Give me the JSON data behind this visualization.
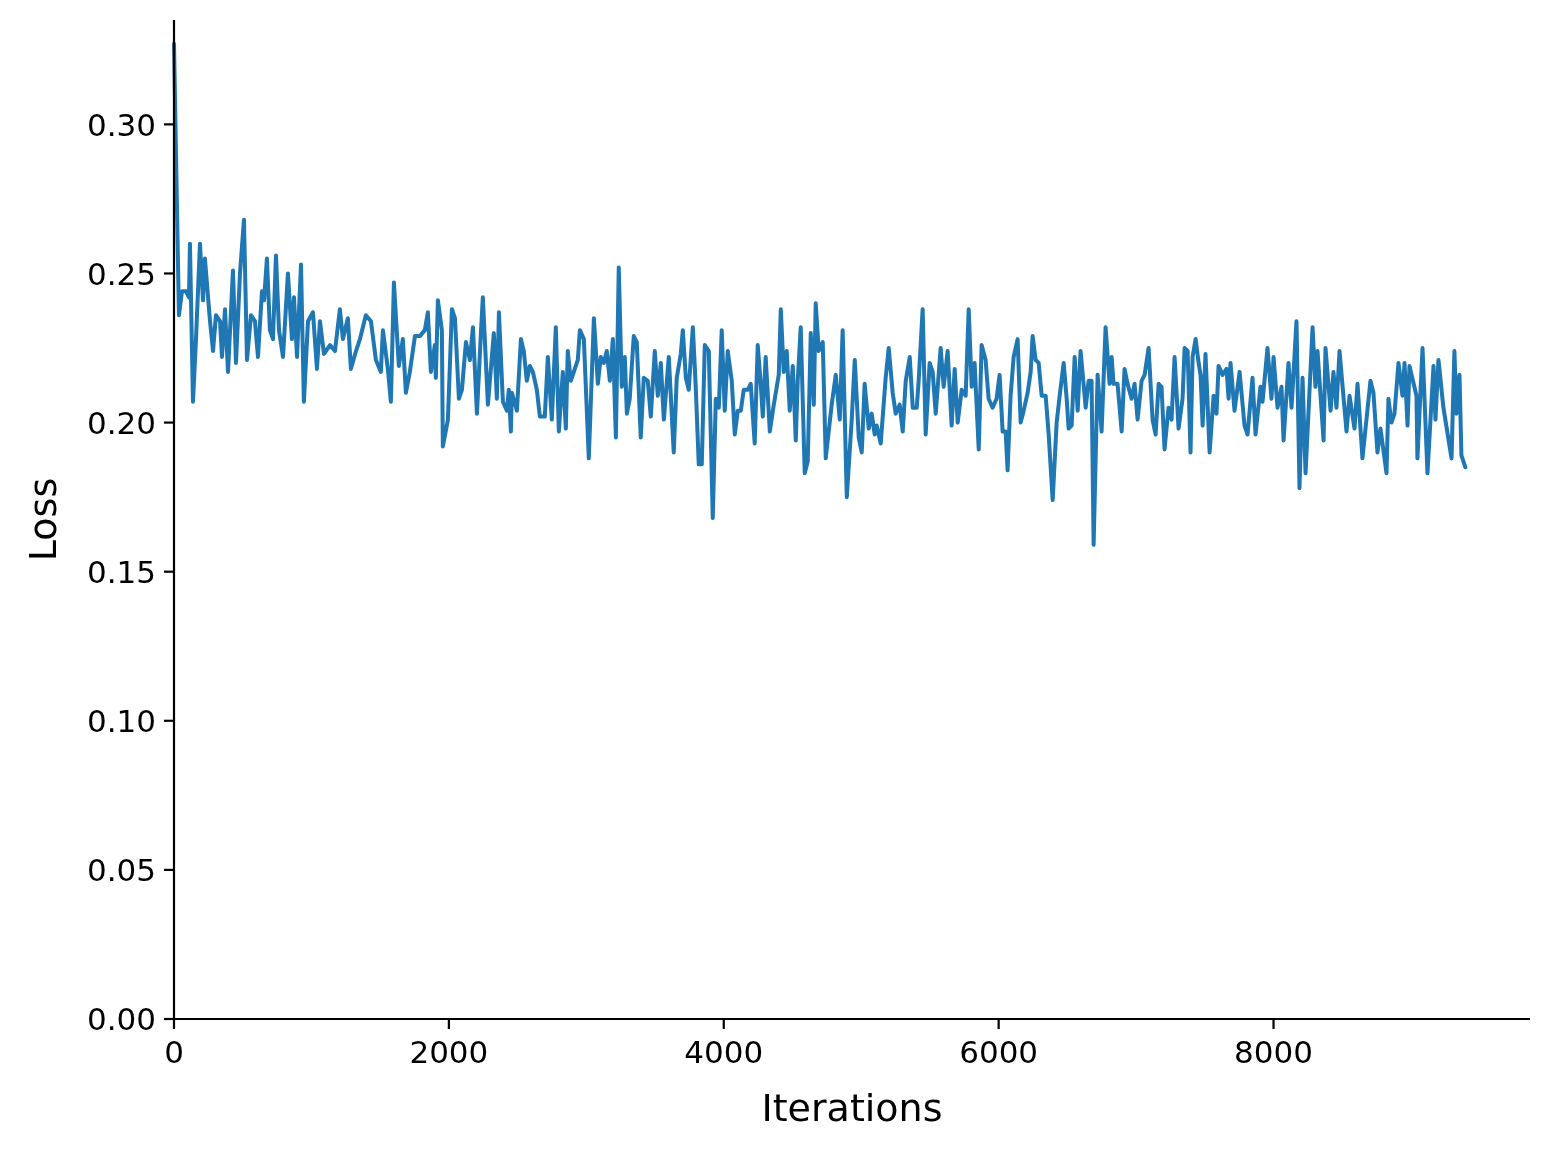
{
  "chart_data": {
    "type": "line",
    "xlabel": "Iterations",
    "ylabel": "Loss",
    "color": "#1f77b4",
    "xlim": [
      0,
      9866
    ],
    "ylim": [
      0,
      0.335
    ],
    "xticks": [
      0,
      2000,
      4000,
      6000,
      8000
    ],
    "yticks": [
      {
        "value": 0,
        "label": "0.00"
      },
      {
        "value": 0.05,
        "label": "0.05"
      },
      {
        "value": 0.1,
        "label": "0.10"
      },
      {
        "value": 0.15,
        "label": "0.15"
      },
      {
        "value": 0.2,
        "label": "0.20"
      },
      {
        "value": 0.25,
        "label": "0.25"
      },
      {
        "value": 0.3,
        "label": "0.30"
      }
    ],
    "x": [
      0,
      36,
      58,
      87,
      109,
      116,
      138,
      160,
      189,
      211,
      225,
      262,
      284,
      305,
      335,
      349,
      371,
      393,
      429,
      451,
      480,
      509,
      531,
      560,
      589,
      611,
      640,
      655,
      676,
      698,
      720,
      742,
      764,
      793,
      829,
      858,
      873,
      895,
      924,
      945,
      975,
      1011,
      1040,
      1062,
      1091,
      1135,
      1171,
      1207,
      1229,
      1265,
      1287,
      1324,
      1353,
      1396,
      1433,
      1469,
      1505,
      1520,
      1556,
      1578,
      1600,
      1636,
      1665,
      1687,
      1716,
      1753,
      1789,
      1825,
      1847,
      1869,
      1898,
      1905,
      1920,
      1949,
      1956,
      1993,
      2022,
      2044,
      2073,
      2095,
      2124,
      2153,
      2175,
      2204,
      2233,
      2247,
      2284,
      2327,
      2349,
      2364,
      2393,
      2422,
      2436,
      2451,
      2458,
      2495,
      2524,
      2545,
      2567,
      2589,
      2611,
      2640,
      2662,
      2698,
      2720,
      2749,
      2778,
      2800,
      2829,
      2851,
      2865,
      2887,
      2909,
      2938,
      2953,
      2982,
      3018,
      3055,
      3084,
      3105,
      3127,
      3149,
      3171,
      3193,
      3215,
      3236,
      3258,
      3280,
      3295,
      3316,
      3345,
      3367,
      3396,
      3418,
      3447,
      3469,
      3498,
      3520,
      3542,
      3564,
      3600,
      3636,
      3658,
      3687,
      3702,
      3724,
      3745,
      3775,
      3796,
      3818,
      3840,
      3862,
      3891,
      3920,
      3942,
      3964,
      3985,
      4007,
      4029,
      4058,
      4080,
      4102,
      4124,
      4145,
      4175,
      4196,
      4225,
      4247,
      4269,
      4284,
      4305,
      4335,
      4364,
      4400,
      4415,
      4436,
      4458,
      4480,
      4502,
      4524,
      4538,
      4560,
      4589,
      4611,
      4633,
      4655,
      4669,
      4691,
      4720,
      4742,
      4785,
      4815,
      4844,
      4865,
      4895,
      4931,
      4953,
      4982,
      5004,
      5025,
      5055,
      5076,
      5098,
      5113,
      5142,
      5178,
      5200,
      5229,
      5251,
      5280,
      5302,
      5324,
      5353,
      5375,
      5404,
      5418,
      5447,
      5469,
      5498,
      5520,
      5542,
      5578,
      5600,
      5629,
      5658,
      5680,
      5702,
      5731,
      5760,
      5782,
      5804,
      5825,
      5855,
      5876,
      5905,
      5927,
      5956,
      5985,
      6007,
      6029,
      6051,
      6065,
      6087,
      6109,
      6138,
      6160,
      6182,
      6211,
      6233,
      6247,
      6269,
      6291,
      6313,
      6342,
      6364,
      6393,
      6422,
      6444,
      6473,
      6495,
      6509,
      6531,
      6553,
      6575,
      6596,
      6618,
      6633,
      6655,
      6676,
      6691,
      6720,
      6749,
      6778,
      6807,
      6822,
      6836,
      6865,
      6895,
      6916,
      6938,
      6967,
      6989,
      7011,
      7040,
      7062,
      7091,
      7120,
      7142,
      7164,
      7185,
      7207,
      7236,
      7258,
      7280,
      7309,
      7338,
      7353,
      7375,
      7396,
      7411,
      7433,
      7455,
      7469,
      7484,
      7505,
      7535,
      7564,
      7585,
      7600,
      7629,
      7658,
      7673,
      7687,
      7716,
      7753,
      7789,
      7811,
      7847,
      7869,
      7905,
      7920,
      7956,
      7985,
      8000,
      8029,
      8058,
      8073,
      8109,
      8131,
      8167,
      8189,
      8211,
      8233,
      8284,
      8305,
      8320,
      8364,
      8378,
      8415,
      8436,
      8458,
      8480,
      8531,
      8553,
      8589,
      8611,
      8647,
      8705,
      8727,
      8756,
      8778,
      8822,
      8836,
      8858,
      8880,
      8909,
      8938,
      8953,
      8975,
      8989,
      9040,
      9047,
      9084,
      9120,
      9164,
      9178,
      9200,
      9236,
      9295,
      9316,
      9331,
      9353,
      9367,
      9396
    ],
    "values": [
      0.327,
      0.236,
      0.244,
      0.244,
      0.242,
      0.26,
      0.207,
      0.228,
      0.26,
      0.241,
      0.255,
      0.234,
      0.224,
      0.236,
      0.234,
      0.222,
      0.238,
      0.217,
      0.251,
      0.22,
      0.25,
      0.268,
      0.221,
      0.236,
      0.234,
      0.222,
      0.244,
      0.241,
      0.255,
      0.231,
      0.228,
      0.256,
      0.231,
      0.222,
      0.25,
      0.228,
      0.242,
      0.222,
      0.253,
      0.207,
      0.234,
      0.237,
      0.218,
      0.234,
      0.223,
      0.226,
      0.224,
      0.238,
      0.228,
      0.235,
      0.218,
      0.224,
      0.228,
      0.236,
      0.234,
      0.221,
      0.217,
      0.231,
      0.218,
      0.207,
      0.247,
      0.219,
      0.228,
      0.21,
      0.217,
      0.229,
      0.229,
      0.231,
      0.237,
      0.217,
      0.226,
      0.215,
      0.241,
      0.231,
      0.192,
      0.201,
      0.238,
      0.235,
      0.208,
      0.211,
      0.227,
      0.221,
      0.232,
      0.203,
      0.23,
      0.242,
      0.206,
      0.23,
      0.208,
      0.237,
      0.207,
      0.204,
      0.211,
      0.197,
      0.21,
      0.204,
      0.228,
      0.224,
      0.214,
      0.219,
      0.217,
      0.211,
      0.202,
      0.202,
      0.222,
      0.201,
      0.232,
      0.197,
      0.217,
      0.198,
      0.224,
      0.214,
      0.217,
      0.221,
      0.231,
      0.228,
      0.188,
      0.235,
      0.213,
      0.222,
      0.22,
      0.224,
      0.214,
      0.228,
      0.195,
      0.252,
      0.212,
      0.222,
      0.203,
      0.208,
      0.229,
      0.227,
      0.195,
      0.215,
      0.214,
      0.202,
      0.224,
      0.209,
      0.22,
      0.201,
      0.222,
      0.19,
      0.215,
      0.223,
      0.231,
      0.215,
      0.211,
      0.232,
      0.212,
      0.186,
      0.186,
      0.226,
      0.224,
      0.168,
      0.208,
      0.205,
      0.231,
      0.204,
      0.224,
      0.214,
      0.196,
      0.204,
      0.204,
      0.211,
      0.211,
      0.213,
      0.193,
      0.226,
      0.213,
      0.202,
      0.222,
      0.197,
      0.206,
      0.216,
      0.238,
      0.217,
      0.224,
      0.204,
      0.219,
      0.194,
      0.214,
      0.232,
      0.183,
      0.187,
      0.23,
      0.206,
      0.24,
      0.224,
      0.227,
      0.188,
      0.206,
      0.216,
      0.201,
      0.231,
      0.175,
      0.201,
      0.221,
      0.195,
      0.19,
      0.213,
      0.198,
      0.203,
      0.196,
      0.199,
      0.193,
      0.215,
      0.225,
      0.21,
      0.203,
      0.206,
      0.197,
      0.214,
      0.222,
      0.205,
      0.205,
      0.214,
      0.238,
      0.196,
      0.22,
      0.217,
      0.203,
      0.225,
      0.212,
      0.224,
      0.199,
      0.218,
      0.2,
      0.211,
      0.209,
      0.238,
      0.212,
      0.22,
      0.191,
      0.226,
      0.221,
      0.208,
      0.205,
      0.208,
      0.216,
      0.197,
      0.197,
      0.184,
      0.209,
      0.222,
      0.228,
      0.2,
      0.204,
      0.21,
      0.217,
      0.229,
      0.221,
      0.22,
      0.209,
      0.209,
      0.196,
      0.174,
      0.2,
      0.209,
      0.22,
      0.208,
      0.198,
      0.199,
      0.222,
      0.204,
      0.224,
      0.213,
      0.205,
      0.214,
      0.214,
      0.159,
      0.216,
      0.197,
      0.232,
      0.213,
      0.222,
      0.213,
      0.213,
      0.197,
      0.218,
      0.213,
      0.208,
      0.213,
      0.201,
      0.214,
      0.216,
      0.225,
      0.201,
      0.196,
      0.213,
      0.212,
      0.191,
      0.205,
      0.201,
      0.222,
      0.198,
      0.208,
      0.225,
      0.224,
      0.19,
      0.222,
      0.228,
      0.22,
      0.216,
      0.199,
      0.223,
      0.19,
      0.209,
      0.203,
      0.219,
      0.216,
      0.218,
      0.208,
      0.22,
      0.204,
      0.217,
      0.199,
      0.196,
      0.215,
      0.196,
      0.212,
      0.207,
      0.225,
      0.208,
      0.222,
      0.205,
      0.212,
      0.194,
      0.22,
      0.205,
      0.234,
      0.178,
      0.215,
      0.183,
      0.232,
      0.212,
      0.224,
      0.194,
      0.225,
      0.204,
      0.217,
      0.205,
      0.224,
      0.197,
      0.209,
      0.198,
      0.213,
      0.188,
      0.214,
      0.21,
      0.19,
      0.198,
      0.183,
      0.208,
      0.2,
      0.203,
      0.22,
      0.209,
      0.22,
      0.199,
      0.219,
      0.209,
      0.188,
      0.225,
      0.183,
      0.219,
      0.201,
      0.221,
      0.205,
      0.188,
      0.224,
      0.203,
      0.216,
      0.189,
      0.185
    ]
  }
}
